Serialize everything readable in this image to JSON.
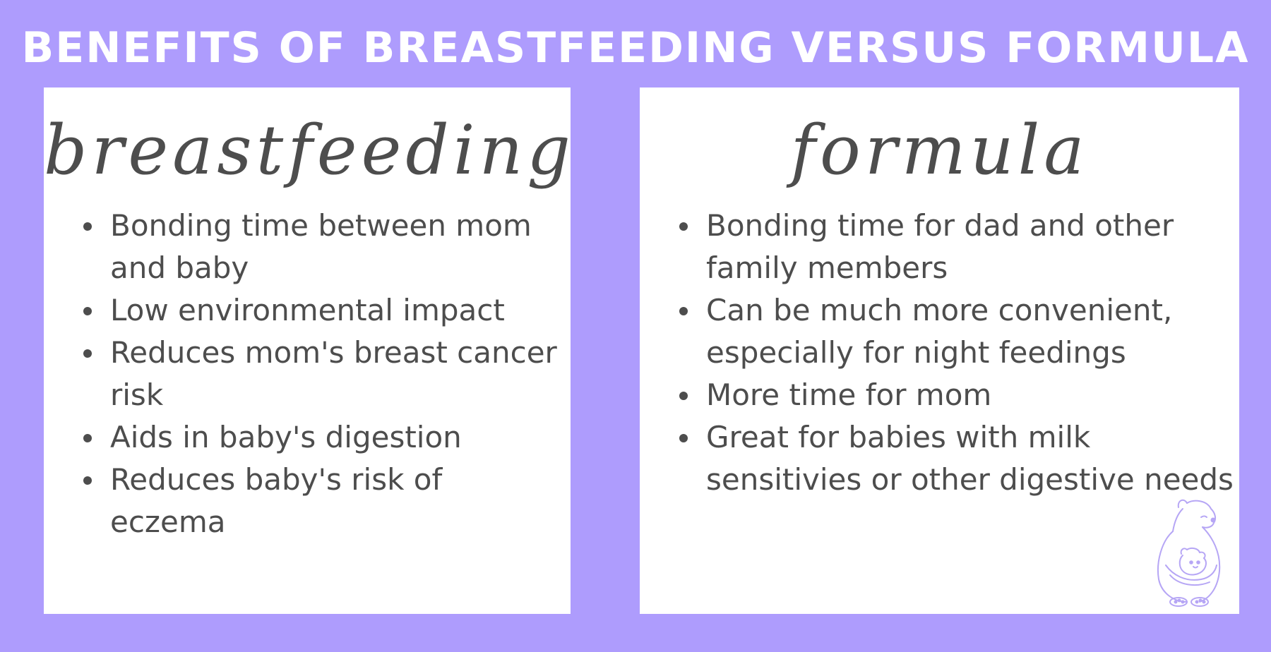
{
  "title": "BENEFITS OF BREASTFEEDING VERSUS FORMULA",
  "breastfeeding": {
    "heading": "breastfeeding",
    "items": [
      "Bonding time between mom and baby",
      "Low environmental impact",
      "Reduces mom's breast cancer risk",
      "Aids in baby's digestion",
      "Reduces baby's risk of eczema"
    ]
  },
  "formula": {
    "heading": "formula",
    "items": [
      "Bonding time for dad and other family members",
      "Can be much more convenient, especially for night feedings",
      "More time for mom",
      "Great for babies with milk sensitivies or other digestive needs"
    ]
  },
  "colors": {
    "background": "#ae9cfd",
    "card": "#ffffff",
    "text": "#4d4d4d",
    "logo": "#b6a6f5"
  },
  "logo": {
    "icon": "bear-hugging-cub-icon"
  }
}
